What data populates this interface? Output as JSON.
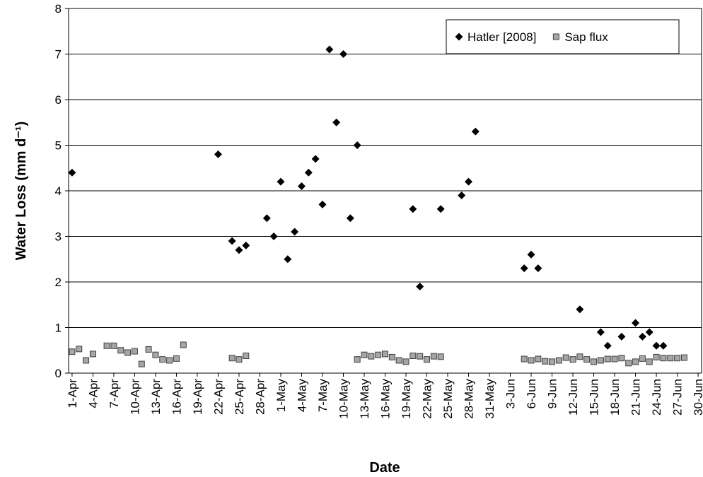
{
  "chart_data": {
    "type": "scatter",
    "xlabel": "Date",
    "ylabel": "Water Loss (mm d⁻¹)",
    "categories": [
      "1-Apr",
      null,
      null,
      "4-Apr",
      null,
      null,
      "7-Apr",
      null,
      null,
      "10-Apr",
      null,
      null,
      "13-Apr",
      null,
      null,
      "16-Apr",
      null,
      null,
      "19-Apr",
      null,
      null,
      "22-Apr",
      null,
      null,
      "25-Apr",
      null,
      null,
      "28-Apr",
      null,
      null,
      "1-May",
      null,
      null,
      "4-May",
      null,
      null,
      "7-May",
      null,
      null,
      "10-May",
      null,
      null,
      "13-May",
      null,
      null,
      "16-May",
      null,
      null,
      "19-May",
      null,
      null,
      "22-May",
      null,
      null,
      "25-May",
      null,
      null,
      "28-May",
      null,
      null,
      "31-May",
      null,
      null,
      "3-Jun",
      null,
      null,
      "6-Jun",
      null,
      null,
      "9-Jun",
      null,
      null,
      "12-Jun",
      null,
      null,
      "15-Jun",
      null,
      null,
      "18-Jun",
      null,
      null,
      "21-Jun",
      null,
      null,
      "24-Jun",
      null,
      null,
      "27-Jun",
      null,
      null,
      "30-Jun"
    ],
    "series": [
      {
        "name": "Hatler [2008]",
        "color": "#000000",
        "marker": "diamond",
        "values": [
          4.4,
          null,
          null,
          null,
          null,
          null,
          null,
          null,
          null,
          null,
          null,
          null,
          null,
          null,
          null,
          null,
          null,
          null,
          null,
          null,
          null,
          4.8,
          null,
          2.9,
          2.7,
          2.8,
          null,
          null,
          3.4,
          3.0,
          4.2,
          2.5,
          3.1,
          4.1,
          4.4,
          4.7,
          3.7,
          7.1,
          5.5,
          7.0,
          3.4,
          5.0,
          null,
          null,
          null,
          null,
          null,
          null,
          null,
          3.6,
          1.9,
          null,
          null,
          3.6,
          null,
          null,
          3.9,
          4.2,
          5.3,
          null,
          null,
          null,
          null,
          null,
          null,
          2.3,
          2.6,
          2.3,
          null,
          null,
          null,
          null,
          null,
          1.4,
          null,
          null,
          0.9,
          0.6,
          null,
          0.8,
          null,
          1.1,
          0.8,
          0.9,
          0.6,
          0.6,
          null,
          null,
          null,
          null,
          null
        ]
      },
      {
        "name": "Sap flux",
        "color": "#a6a6a6",
        "marker": "square",
        "values": [
          0.47,
          0.53,
          0.28,
          0.42,
          null,
          0.6,
          0.6,
          0.5,
          0.45,
          0.48,
          0.2,
          0.52,
          0.4,
          0.3,
          0.28,
          0.32,
          0.62,
          null,
          null,
          null,
          null,
          null,
          null,
          0.33,
          0.3,
          0.38,
          null,
          null,
          null,
          null,
          null,
          null,
          null,
          null,
          null,
          null,
          null,
          null,
          null,
          null,
          null,
          0.3,
          0.4,
          0.37,
          0.4,
          0.42,
          0.35,
          0.28,
          0.25,
          0.38,
          0.37,
          0.3,
          0.37,
          0.36,
          null,
          null,
          null,
          null,
          null,
          null,
          null,
          null,
          null,
          null,
          null,
          0.31,
          0.28,
          0.31,
          0.26,
          0.25,
          0.28,
          0.34,
          0.3,
          0.36,
          0.3,
          0.25,
          0.28,
          0.31,
          0.31,
          0.33,
          0.22,
          0.25,
          0.32,
          0.25,
          0.35,
          0.33,
          0.33,
          0.33,
          0.34,
          null,
          null
        ]
      }
    ],
    "ylim": [
      0,
      8
    ],
    "yticks": [
      0,
      1,
      2,
      3,
      4,
      5,
      6,
      7,
      8
    ],
    "grid": true,
    "legend": "upper right"
  }
}
